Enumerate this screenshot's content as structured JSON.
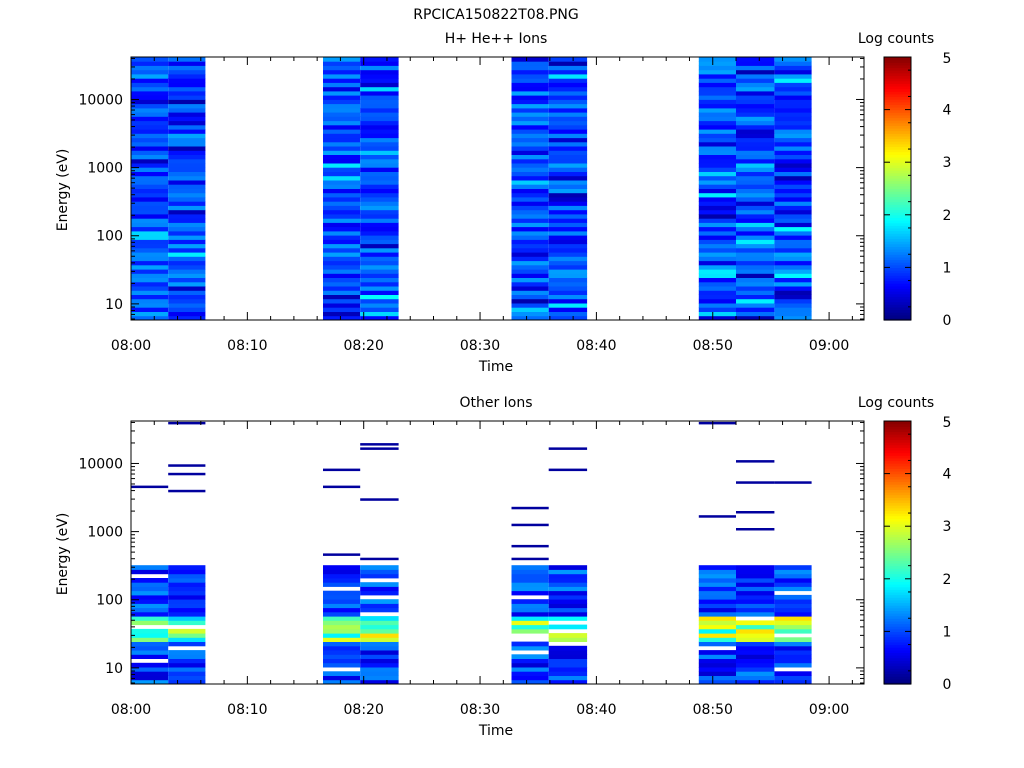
{
  "figure": {
    "title": "RPCICA150822T08.PNG"
  },
  "colorbar": {
    "label": "Log counts",
    "ticks": [
      "0",
      "1",
      "2",
      "3",
      "4",
      "5"
    ],
    "range": [
      0,
      5
    ]
  },
  "x_ticks": [
    "08:00",
    "08:10",
    "08:20",
    "08:30",
    "08:40",
    "08:50",
    "09:00"
  ],
  "chart_data": [
    {
      "type": "heatmap",
      "title": "H+ He++ Ions",
      "xlabel": "Time",
      "ylabel": "Energy (eV)",
      "y_scale": "log",
      "y_range": [
        5.8,
        42000
      ],
      "x_range_minutes": [
        0,
        63
      ],
      "y_ticks": [
        "10",
        "100",
        "1000",
        "10000"
      ],
      "colorbar_label": "Log counts",
      "color_range": [
        0,
        5
      ],
      "time_columns_minutes": [
        [
          0,
          3.2
        ],
        [
          3.2,
          6.4
        ],
        [
          16.5,
          19.7
        ],
        [
          19.7,
          23
        ],
        [
          32.7,
          35.9
        ],
        [
          35.9,
          39.2
        ],
        [
          48.8,
          52
        ],
        [
          52,
          55.3
        ],
        [
          55.3,
          58.5
        ]
      ],
      "value_summary": "log counts mostly ~0.5-1.5 (blue) at all energies; gaps 08:06-08:16, 08:23-08:33, 08:39-08:49"
    },
    {
      "type": "heatmap",
      "title": "Other Ions",
      "xlabel": "Time",
      "ylabel": "Energy (eV)",
      "y_scale": "log",
      "y_range": [
        5.8,
        42000
      ],
      "x_range_minutes": [
        0,
        63
      ],
      "y_ticks": [
        "10",
        "100",
        "1000",
        "10000"
      ],
      "colorbar_label": "Log counts",
      "color_range": [
        0,
        5
      ],
      "time_columns_minutes": [
        [
          0,
          3.2
        ],
        [
          3.2,
          6.4
        ],
        [
          16.5,
          19.7
        ],
        [
          19.7,
          23
        ],
        [
          32.7,
          35.9
        ],
        [
          35.9,
          39.2
        ],
        [
          48.8,
          52
        ],
        [
          52,
          55.3
        ],
        [
          55.3,
          58.5
        ]
      ],
      "value_summary": "counts below ~300 eV (log ~0.5-3.5, peaks ~30-50 eV); sparse single-count lines at higher energies"
    }
  ]
}
